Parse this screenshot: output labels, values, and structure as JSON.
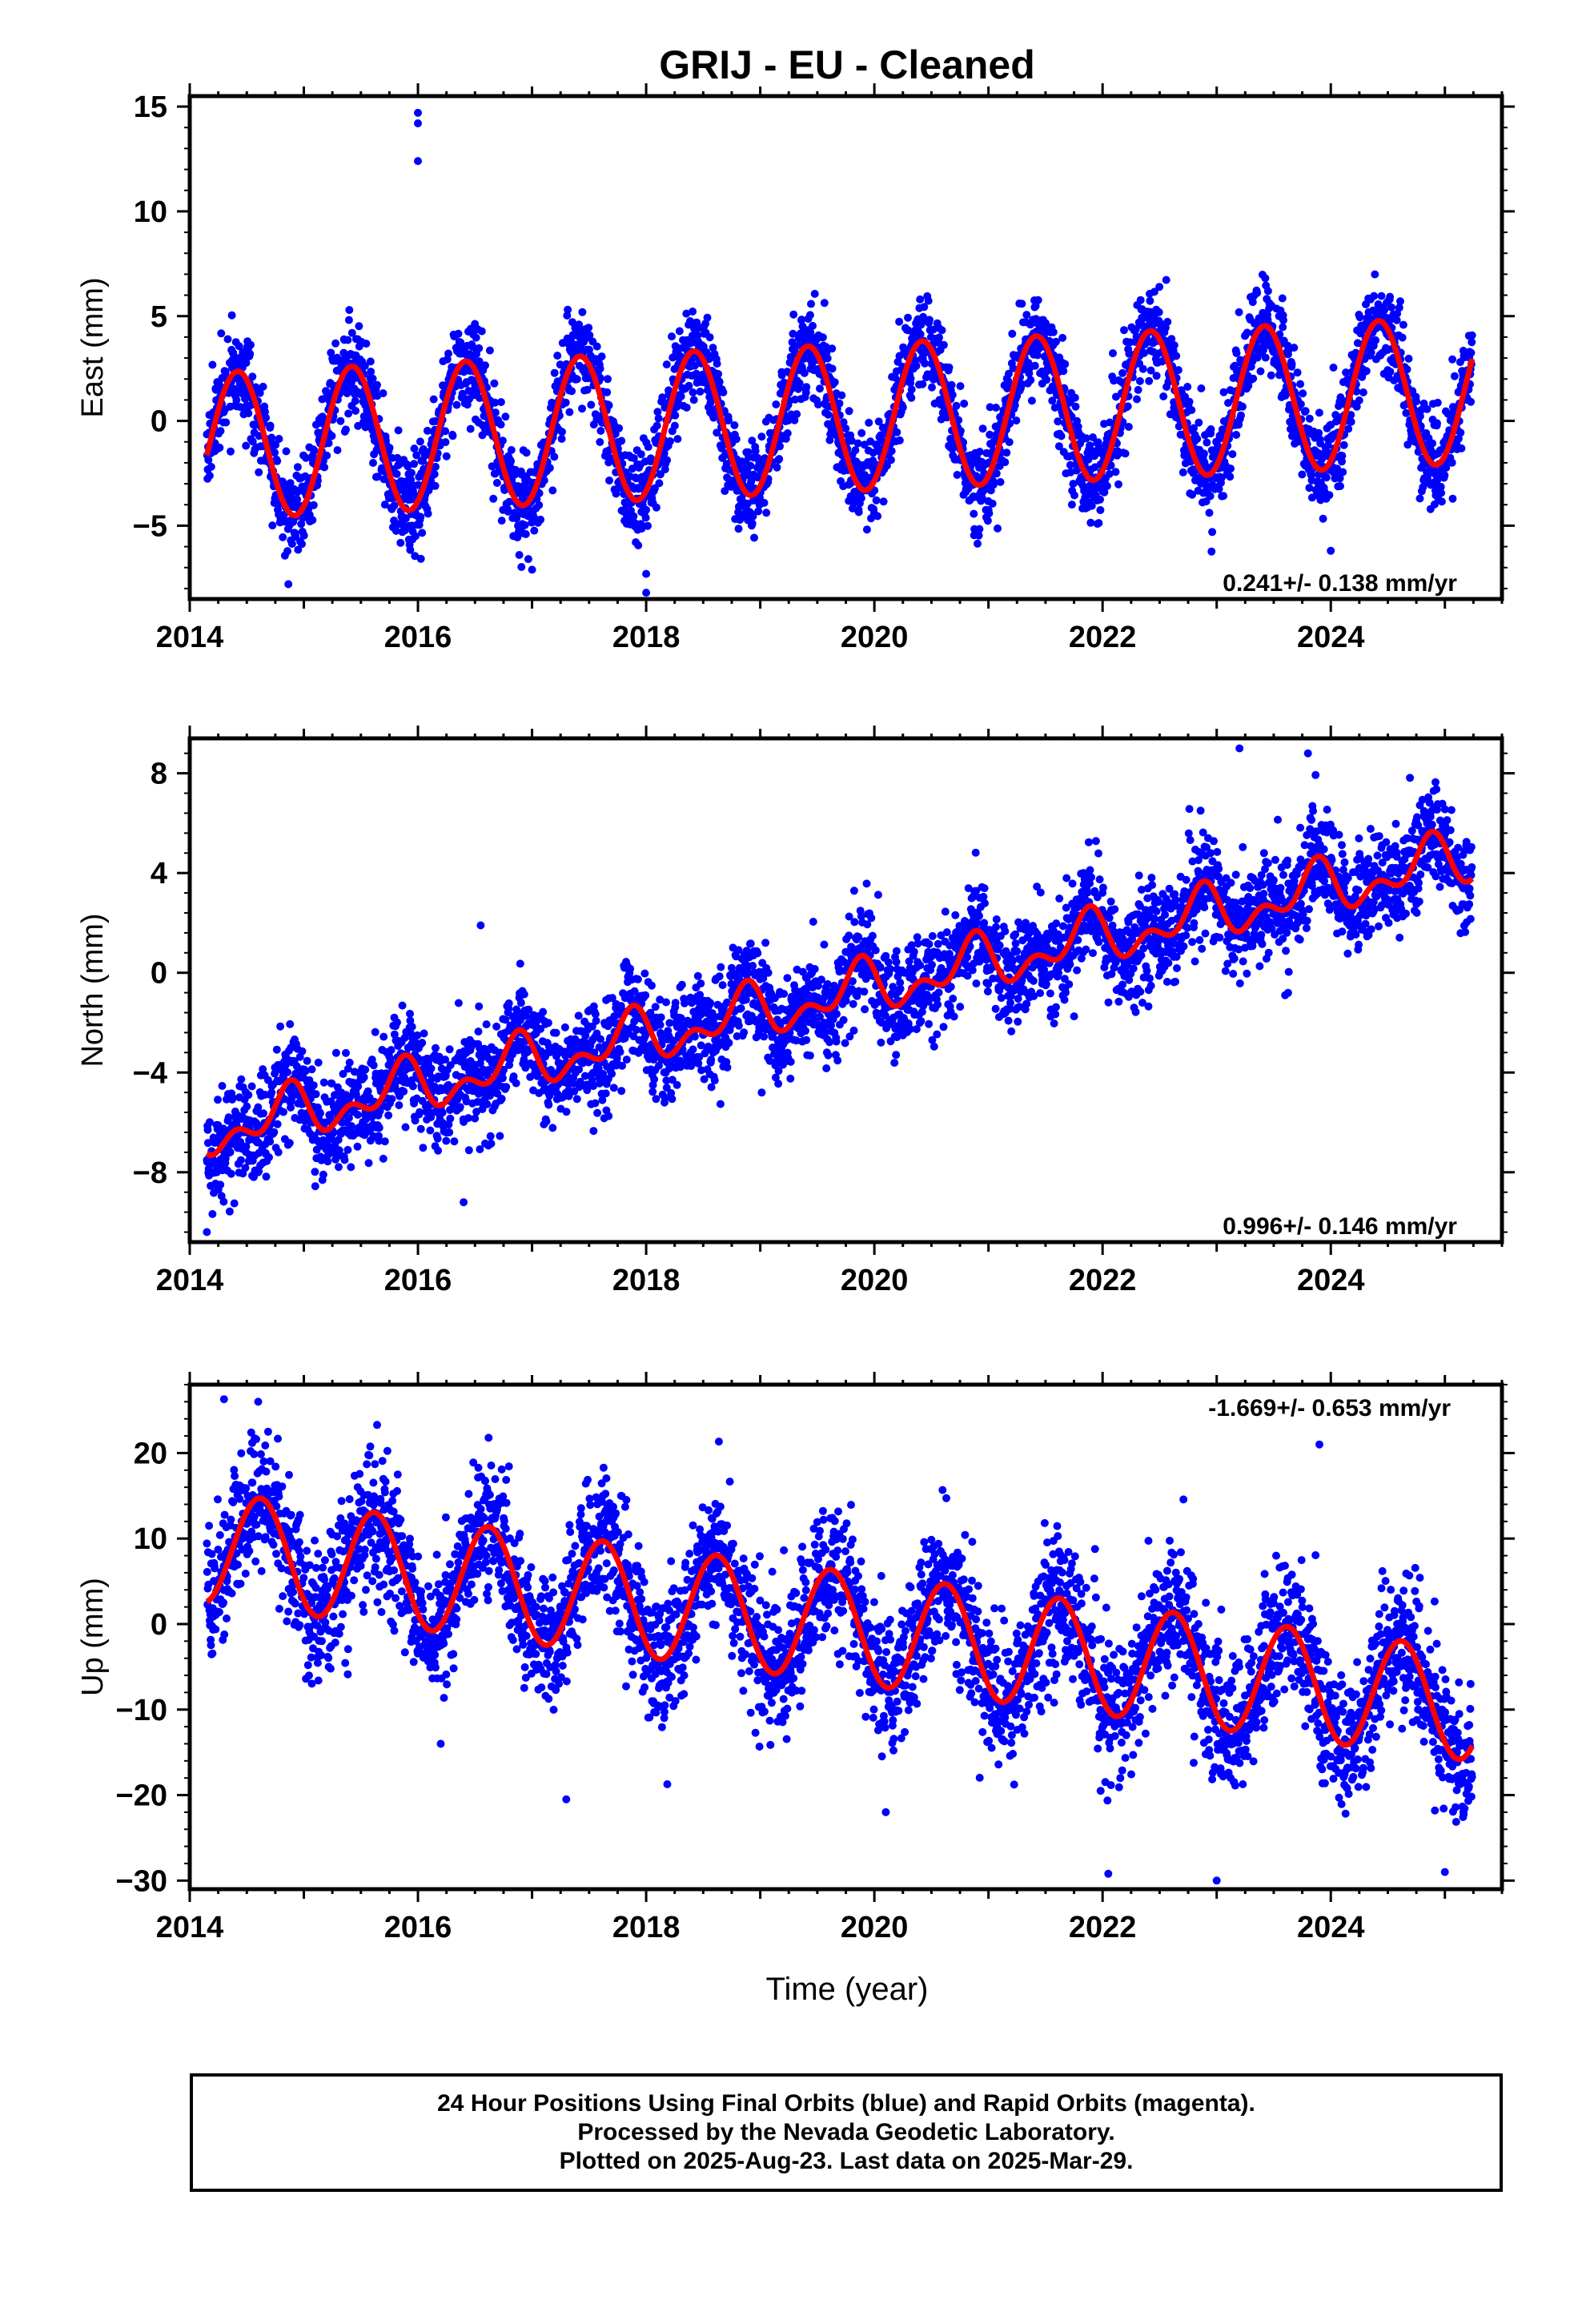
{
  "title": "GRIJ  - EU - Cleaned",
  "xlabel": "Time (year)",
  "footer": {
    "line1": "24 Hour Positions Using Final Orbits (blue) and Rapid Orbits (magenta).",
    "line2": "Processed by the Nevada Geodetic Laboratory.",
    "line3": "Plotted on 2025-Aug-23. Last data on 2025-Mar-29."
  },
  "colors": {
    "points": "#0000ff",
    "fit": "#ff0000",
    "frame": "#000000"
  },
  "chart_data": [
    {
      "type": "scatter",
      "name_component": "East",
      "ylabel": "East (mm)",
      "rate_label": "0.241+/- 0.138 mm/yr",
      "xlim": [
        2014.0,
        2025.5
      ],
      "ylim": [
        -8.5,
        15.5
      ],
      "yticks": [
        -5,
        0,
        5,
        10,
        15
      ],
      "xticks": [
        2014,
        2016,
        2018,
        2020,
        2022,
        2024
      ],
      "grid": false,
      "fit_model": {
        "offset": -1.2,
        "trend": 0.241,
        "annual_amp": 3.5,
        "annual_peak": 0.42,
        "semi_amp": 0,
        "semi_peak": 0,
        "noise": 1.1
      },
      "outliers": [
        [
          2016.0,
          14.7
        ],
        [
          2016.0,
          14.2
        ],
        [
          2016.0,
          12.4
        ],
        [
          2018.0,
          -8.2
        ],
        [
          2018.0,
          -7.3
        ],
        [
          2017.0,
          -7.1
        ],
        [
          2024.0,
          -6.2
        ]
      ]
    },
    {
      "type": "scatter",
      "name_component": "North",
      "ylabel": "North (mm)",
      "rate_label": "0.996+/- 0.146 mm/yr",
      "xlim": [
        2014.0,
        2025.5
      ],
      "ylim": [
        -10.8,
        9.4
      ],
      "yticks": [
        -8,
        -4,
        0,
        4,
        8
      ],
      "xticks": [
        2014,
        2016,
        2018,
        2020,
        2022,
        2024
      ],
      "grid": false,
      "fit_model": {
        "offset": -6.4,
        "trend": 0.996,
        "annual_amp": 0.8,
        "annual_peak": 0.85,
        "semi_amp": 0.6,
        "semi_peak": 0.4,
        "noise": 1.0
      },
      "outliers": [
        [
          2014.15,
          -10.4
        ],
        [
          2016.4,
          -9.2
        ],
        [
          2023.2,
          9.0
        ],
        [
          2023.8,
          8.8
        ],
        [
          2016.55,
          1.9
        ],
        [
          2014.6,
          -8.0
        ],
        [
          2023.6,
          -0.9
        ]
      ]
    },
    {
      "type": "scatter",
      "name_component": "Up",
      "ylabel": "Up (mm)",
      "rate_label": "-1.669+/- 0.653 mm/yr",
      "xlim": [
        2014.0,
        2025.5
      ],
      "ylim": [
        -31,
        28
      ],
      "yticks": [
        -30,
        -20,
        -10,
        0,
        10,
        20
      ],
      "xticks": [
        2014,
        2016,
        2018,
        2020,
        2022,
        2024
      ],
      "grid": false,
      "fit_model": {
        "offset": 9.0,
        "trend": -1.669,
        "annual_amp": 6.5,
        "annual_peak": 0.62,
        "semi_amp": 0,
        "semi_peak": 0,
        "noise": 4.0
      },
      "outliers": [
        [
          2014.3,
          26.3
        ],
        [
          2014.6,
          26.0
        ],
        [
          2023.9,
          21.0
        ],
        [
          2020.1,
          -22.0
        ],
        [
          2023.0,
          -30.0
        ],
        [
          2022.05,
          -29.2
        ],
        [
          2025.0,
          -29.0
        ],
        [
          2016.2,
          -14.0
        ],
        [
          2017.3,
          -20.5
        ]
      ]
    }
  ]
}
